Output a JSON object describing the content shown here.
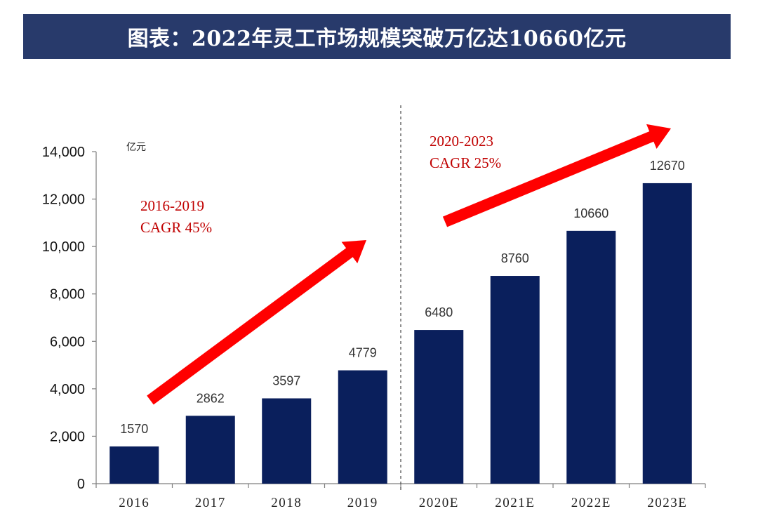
{
  "header": {
    "title": "图表：2022年灵工市场规模突破万亿达10660亿元"
  },
  "chart_data": {
    "type": "bar",
    "categories": [
      "2016",
      "2017",
      "2018",
      "2019",
      "2020E",
      "2021E",
      "2022E",
      "2023E"
    ],
    "values": [
      1570,
      2862,
      3597,
      4779,
      6480,
      8760,
      10660,
      12670
    ],
    "data_labels": [
      "1570",
      "2862",
      "3597",
      "4779",
      "6480",
      "8760",
      "10660",
      "12670"
    ],
    "ylim": [
      0,
      14000
    ],
    "yticks": [
      0,
      2000,
      4000,
      6000,
      8000,
      10000,
      12000,
      14000
    ],
    "ytick_labels": [
      "0",
      "2,000",
      "4,000",
      "6,000",
      "8,000",
      "10,000",
      "12,000",
      "14,000"
    ],
    "unit_label": "亿元",
    "grid": false,
    "bar_color": "#0a1f5c",
    "annotations": [
      {
        "id": "cagr-2016-2019",
        "lines": [
          "2016-2019",
          "CAGR 45%"
        ],
        "color": "#c00000"
      },
      {
        "id": "cagr-2020-2023",
        "lines": [
          "2020-2023",
          "CAGR 25%"
        ],
        "color": "#c00000"
      }
    ],
    "arrow_color": "#ff0000",
    "divider": "dashed vertical line between 2019 and 2020E"
  }
}
